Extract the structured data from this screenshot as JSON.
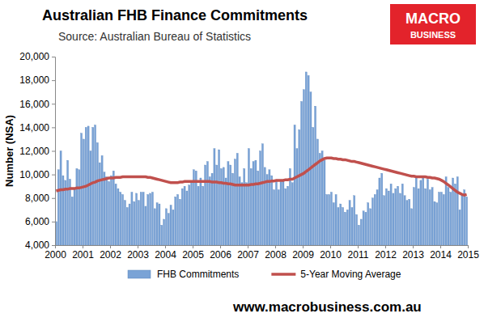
{
  "chart_data": {
    "type": "bar",
    "title": "Australian FHB Finance Commitments",
    "subtitle": "Source: Australian Bureau of Statistics",
    "logo": [
      "MACRO",
      "BUSINESS"
    ],
    "footer": "www.macrobusiness.com.au",
    "y_label": "Number (NSA)",
    "x": [
      2000.042,
      2000.125,
      2000.208,
      2000.292,
      2000.375,
      2000.458,
      2000.542,
      2000.625,
      2000.708,
      2000.792,
      2000.875,
      2000.958,
      2001.042,
      2001.125,
      2001.208,
      2001.292,
      2001.375,
      2001.458,
      2001.542,
      2001.625,
      2001.708,
      2001.792,
      2001.875,
      2001.958,
      2002.042,
      2002.125,
      2002.208,
      2002.292,
      2002.375,
      2002.458,
      2002.542,
      2002.625,
      2002.708,
      2002.792,
      2002.875,
      2002.958,
      2003.042,
      2003.125,
      2003.208,
      2003.292,
      2003.375,
      2003.458,
      2003.542,
      2003.625,
      2003.708,
      2003.792,
      2003.875,
      2003.958,
      2004.042,
      2004.125,
      2004.208,
      2004.292,
      2004.375,
      2004.458,
      2004.542,
      2004.625,
      2004.708,
      2004.792,
      2004.875,
      2004.958,
      2005.042,
      2005.125,
      2005.208,
      2005.292,
      2005.375,
      2005.458,
      2005.542,
      2005.625,
      2005.708,
      2005.792,
      2005.875,
      2005.958,
      2006.042,
      2006.125,
      2006.208,
      2006.292,
      2006.375,
      2006.458,
      2006.542,
      2006.625,
      2006.708,
      2006.792,
      2006.875,
      2006.958,
      2007.042,
      2007.125,
      2007.208,
      2007.292,
      2007.375,
      2007.458,
      2007.542,
      2007.625,
      2007.708,
      2007.792,
      2007.875,
      2007.958,
      2008.042,
      2008.125,
      2008.208,
      2008.292,
      2008.375,
      2008.458,
      2008.542,
      2008.625,
      2008.708,
      2008.792,
      2008.875,
      2008.958,
      2009.042,
      2009.125,
      2009.208,
      2009.292,
      2009.375,
      2009.458,
      2009.542,
      2009.625,
      2009.708,
      2009.792,
      2009.875,
      2009.958,
      2010.042,
      2010.125,
      2010.208,
      2010.292,
      2010.375,
      2010.458,
      2010.542,
      2010.625,
      2010.708,
      2010.792,
      2010.875,
      2010.958,
      2011.042,
      2011.125,
      2011.208,
      2011.292,
      2011.375,
      2011.458,
      2011.542,
      2011.625,
      2011.708,
      2011.792,
      2011.875,
      2011.958,
      2012.042,
      2012.125,
      2012.208,
      2012.292,
      2012.375,
      2012.458,
      2012.542,
      2012.625,
      2012.708,
      2012.792,
      2012.875,
      2012.958,
      2013.042,
      2013.125,
      2013.208,
      2013.292,
      2013.375,
      2013.458,
      2013.542,
      2013.625,
      2013.708,
      2013.792,
      2013.875,
      2013.958,
      2014.042,
      2014.125,
      2014.208,
      2014.292,
      2014.375,
      2014.458,
      2014.542,
      2014.625,
      2014.708,
      2014.792,
      2014.875,
      2014.958
    ],
    "series": [
      {
        "name": "FHB Commitments",
        "type": "bar",
        "color": "#7aa3d6",
        "values": [
          6000,
          10400,
          12000,
          9900,
          9500,
          11200,
          9600,
          8100,
          8800,
          10500,
          10400,
          13500,
          13000,
          14000,
          14100,
          12000,
          14000,
          14200,
          12700,
          11000,
          11600,
          10200,
          9800,
          9400,
          9900,
          10300,
          9200,
          8800,
          8500,
          8300,
          7800,
          7200,
          7500,
          8500,
          7700,
          8400,
          7800,
          8500,
          8500,
          7300,
          8300,
          8400,
          8500,
          7100,
          7600,
          7500,
          5700,
          6200,
          7100,
          6700,
          7400,
          7000,
          8100,
          8300,
          7900,
          8800,
          9000,
          8600,
          9100,
          9400,
          10400,
          10300,
          9000,
          9700,
          9000,
          10800,
          11100,
          9800,
          10100,
          12200,
          10800,
          12100,
          10500,
          10600,
          9700,
          11100,
          10800,
          10100,
          11300,
          11800,
          9800,
          9300,
          10500,
          9300,
          12200,
          10500,
          11100,
          11200,
          10300,
          12000,
          12600,
          10600,
          10000,
          10400,
          9900,
          8700,
          9500,
          8700,
          9400,
          9500,
          8800,
          9000,
          10500,
          9300,
          14200,
          12200,
          13800,
          16200,
          17200,
          18700,
          18400,
          17000,
          14000,
          15800,
          13000,
          11800,
          12000,
          11200,
          8300,
          8300,
          8500,
          7600,
          8300,
          7200,
          7500,
          7200,
          6800,
          7000,
          7800,
          7200,
          8200,
          6600,
          5700,
          6200,
          6900,
          6800,
          7600,
          7100,
          8000,
          8300,
          8700,
          9700,
          10100,
          8200,
          8800,
          8600,
          9200,
          8400,
          8800,
          9000,
          8400,
          9200,
          8200,
          7800,
          7900,
          7100,
          8900,
          9700,
          8800,
          9500,
          9700,
          8800,
          9600,
          8700,
          8900,
          7700,
          7600,
          8500,
          8500,
          8300,
          9800,
          8900,
          8500,
          9700,
          9200,
          9800,
          7000,
          8200,
          8700,
          8100
        ]
      },
      {
        "name": "5-Year Moving Average",
        "type": "line",
        "color": "#c0504d",
        "values": [
          8600,
          8650,
          8700,
          8700,
          8750,
          8750,
          8800,
          8800,
          8800,
          8850,
          8850,
          8900,
          8950,
          9000,
          9100,
          9200,
          9300,
          9350,
          9450,
          9500,
          9550,
          9600,
          9650,
          9700,
          9700,
          9700,
          9750,
          9750,
          9750,
          9800,
          9800,
          9800,
          9800,
          9800,
          9800,
          9800,
          9800,
          9800,
          9800,
          9800,
          9750,
          9750,
          9700,
          9650,
          9600,
          9550,
          9500,
          9450,
          9400,
          9350,
          9300,
          9300,
          9300,
          9300,
          9350,
          9350,
          9400,
          9400,
          9400,
          9400,
          9400,
          9400,
          9400,
          9400,
          9400,
          9400,
          9400,
          9400,
          9350,
          9350,
          9350,
          9300,
          9300,
          9250,
          9250,
          9200,
          9200,
          9150,
          9100,
          9100,
          9100,
          9100,
          9100,
          9100,
          9100,
          9150,
          9150,
          9200,
          9200,
          9250,
          9300,
          9350,
          9400,
          9400,
          9450,
          9450,
          9500,
          9500,
          9500,
          9500,
          9550,
          9550,
          9600,
          9600,
          9700,
          9800,
          9900,
          10000,
          10100,
          10250,
          10400,
          10550,
          10700,
          10850,
          11000,
          11150,
          11250,
          11350,
          11400,
          11400,
          11400,
          11350,
          11350,
          11300,
          11300,
          11250,
          11250,
          11200,
          11150,
          11100,
          11100,
          11050,
          11000,
          10950,
          10900,
          10850,
          10800,
          10750,
          10700,
          10650,
          10600,
          10550,
          10500,
          10450,
          10400,
          10350,
          10300,
          10250,
          10200,
          10150,
          10100,
          10050,
          10000,
          9950,
          9900,
          9850,
          9850,
          9800,
          9800,
          9800,
          9800,
          9800,
          9750,
          9750,
          9700,
          9700,
          9650,
          9600,
          9500,
          9400,
          9250,
          9100,
          8950,
          8800,
          8650,
          8500,
          8400,
          8300,
          8250,
          8300
        ]
      }
    ],
    "xlim": [
      2000,
      2015
    ],
    "xticks": [
      2000,
      2001,
      2002,
      2003,
      2004,
      2005,
      2006,
      2007,
      2008,
      2009,
      2010,
      2011,
      2012,
      2013,
      2014,
      2015
    ],
    "ylim": [
      4000,
      20000
    ],
    "yticks": [
      {
        "value": 4000,
        "label": "4,000"
      },
      {
        "value": 6000,
        "label": "6,000"
      },
      {
        "value": 8000,
        "label": "8,000"
      },
      {
        "value": 10000,
        "label": "10,000"
      },
      {
        "value": 12000,
        "label": "12,000"
      },
      {
        "value": 14000,
        "label": "14,000"
      },
      {
        "value": 16000,
        "label": "16,000"
      },
      {
        "value": 18000,
        "label": "18,000"
      },
      {
        "value": 20000,
        "label": "20,000"
      }
    ],
    "grid": false,
    "legend": "bottom"
  }
}
